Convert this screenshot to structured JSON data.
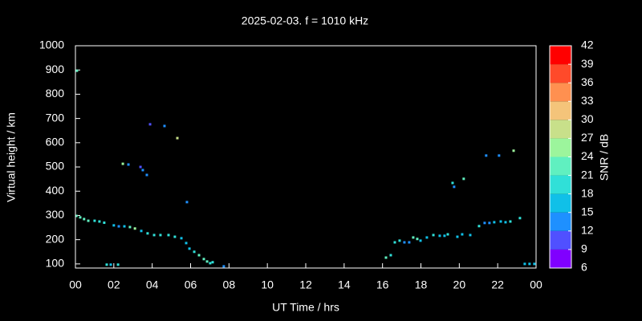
{
  "chart_data": {
    "type": "scatter",
    "title": "2025-02-03. f = 1010 kHz",
    "x_label": "UT Time / hrs",
    "y_label": "Virtual height / km",
    "xlim": [
      0,
      24
    ],
    "xticks": [
      {
        "value": 0,
        "label": "00"
      },
      {
        "value": 2,
        "label": "02"
      },
      {
        "value": 4,
        "label": "04"
      },
      {
        "value": 6,
        "label": "06"
      },
      {
        "value": 8,
        "label": "08"
      },
      10,
      12,
      14,
      16,
      18,
      20,
      22,
      {
        "value": 24,
        "label": "00"
      }
    ],
    "ylim": [
      83,
      1000
    ],
    "yticks": [
      100,
      200,
      300,
      400,
      500,
      600,
      700,
      800,
      900,
      1000
    ],
    "x": [
      0.08,
      0.05,
      0.25,
      0.45,
      0.67,
      1.0,
      1.25,
      1.5,
      2.0,
      2.26,
      2.55,
      2.84,
      3.1,
      3.43,
      3.76,
      4.1,
      4.43,
      4.85,
      5.18,
      5.52,
      5.77,
      5.94,
      6.19,
      6.44,
      6.69,
      6.86,
      7.02,
      7.15,
      7.73,
      1.63,
      1.84,
      2.22,
      2.47,
      2.76,
      3.39,
      3.51,
      3.72,
      3.89,
      4.64,
      5.31,
      5.81,
      16.18,
      16.43,
      16.64,
      16.89,
      17.14,
      17.39,
      17.6,
      17.81,
      17.98,
      18.31,
      18.65,
      18.98,
      19.23,
      19.4,
      19.65,
      19.73,
      19.9,
      20.15,
      20.23,
      20.57,
      21.03,
      21.32,
      21.4,
      21.57,
      21.82,
      22.07,
      22.16,
      22.41,
      22.66,
      22.83,
      23.16,
      23.41,
      23.66,
      23.91
    ],
    "y": [
      897,
      298,
      292,
      285,
      278,
      278,
      275,
      270,
      259,
      255,
      255,
      252,
      246,
      236,
      226,
      219,
      219,
      219,
      212,
      206,
      186,
      163,
      150,
      136,
      120,
      110,
      103,
      107,
      90,
      97,
      97,
      97,
      513,
      510,
      500,
      487,
      467,
      676,
      669,
      619,
      355,
      126,
      136,
      189,
      196,
      189,
      189,
      209,
      203,
      196,
      209,
      219,
      216,
      216,
      222,
      434,
      418,
      212,
      222,
      451,
      219,
      256,
      269,
      547,
      269,
      272,
      547,
      275,
      272,
      275,
      567,
      289,
      100,
      100,
      100
    ],
    "snr": [
      22,
      21,
      22,
      21,
      21,
      20,
      20,
      19,
      15,
      13,
      15,
      22,
      24,
      17,
      18,
      18,
      19,
      18,
      20,
      16,
      16,
      17,
      20,
      21,
      22,
      23,
      20,
      18,
      13,
      18,
      17,
      20,
      25,
      12,
      10,
      13,
      12,
      10,
      13,
      27,
      12,
      22,
      20,
      18,
      19,
      12,
      14,
      23,
      21,
      16,
      17,
      20,
      17,
      17,
      18,
      18,
      13,
      17,
      17,
      21,
      17,
      18,
      14,
      13,
      14,
      15,
      12,
      16,
      17,
      18,
      24,
      20,
      16,
      16,
      17
    ],
    "colorbar": {
      "label": "SNR / dB",
      "lim": [
        6,
        42
      ],
      "ticks": [
        6,
        9,
        12,
        15,
        18,
        21,
        24,
        27,
        30,
        33,
        36,
        39,
        42
      ],
      "colors": [
        "#8000ff",
        "#5050ff",
        "#1e90ff",
        "#10c0e8",
        "#30e0d8",
        "#60f0c0",
        "#9cf59c",
        "#c8e08a",
        "#f4c47a",
        "#ff9050",
        "#ff4a2a",
        "#ff0000"
      ]
    }
  }
}
